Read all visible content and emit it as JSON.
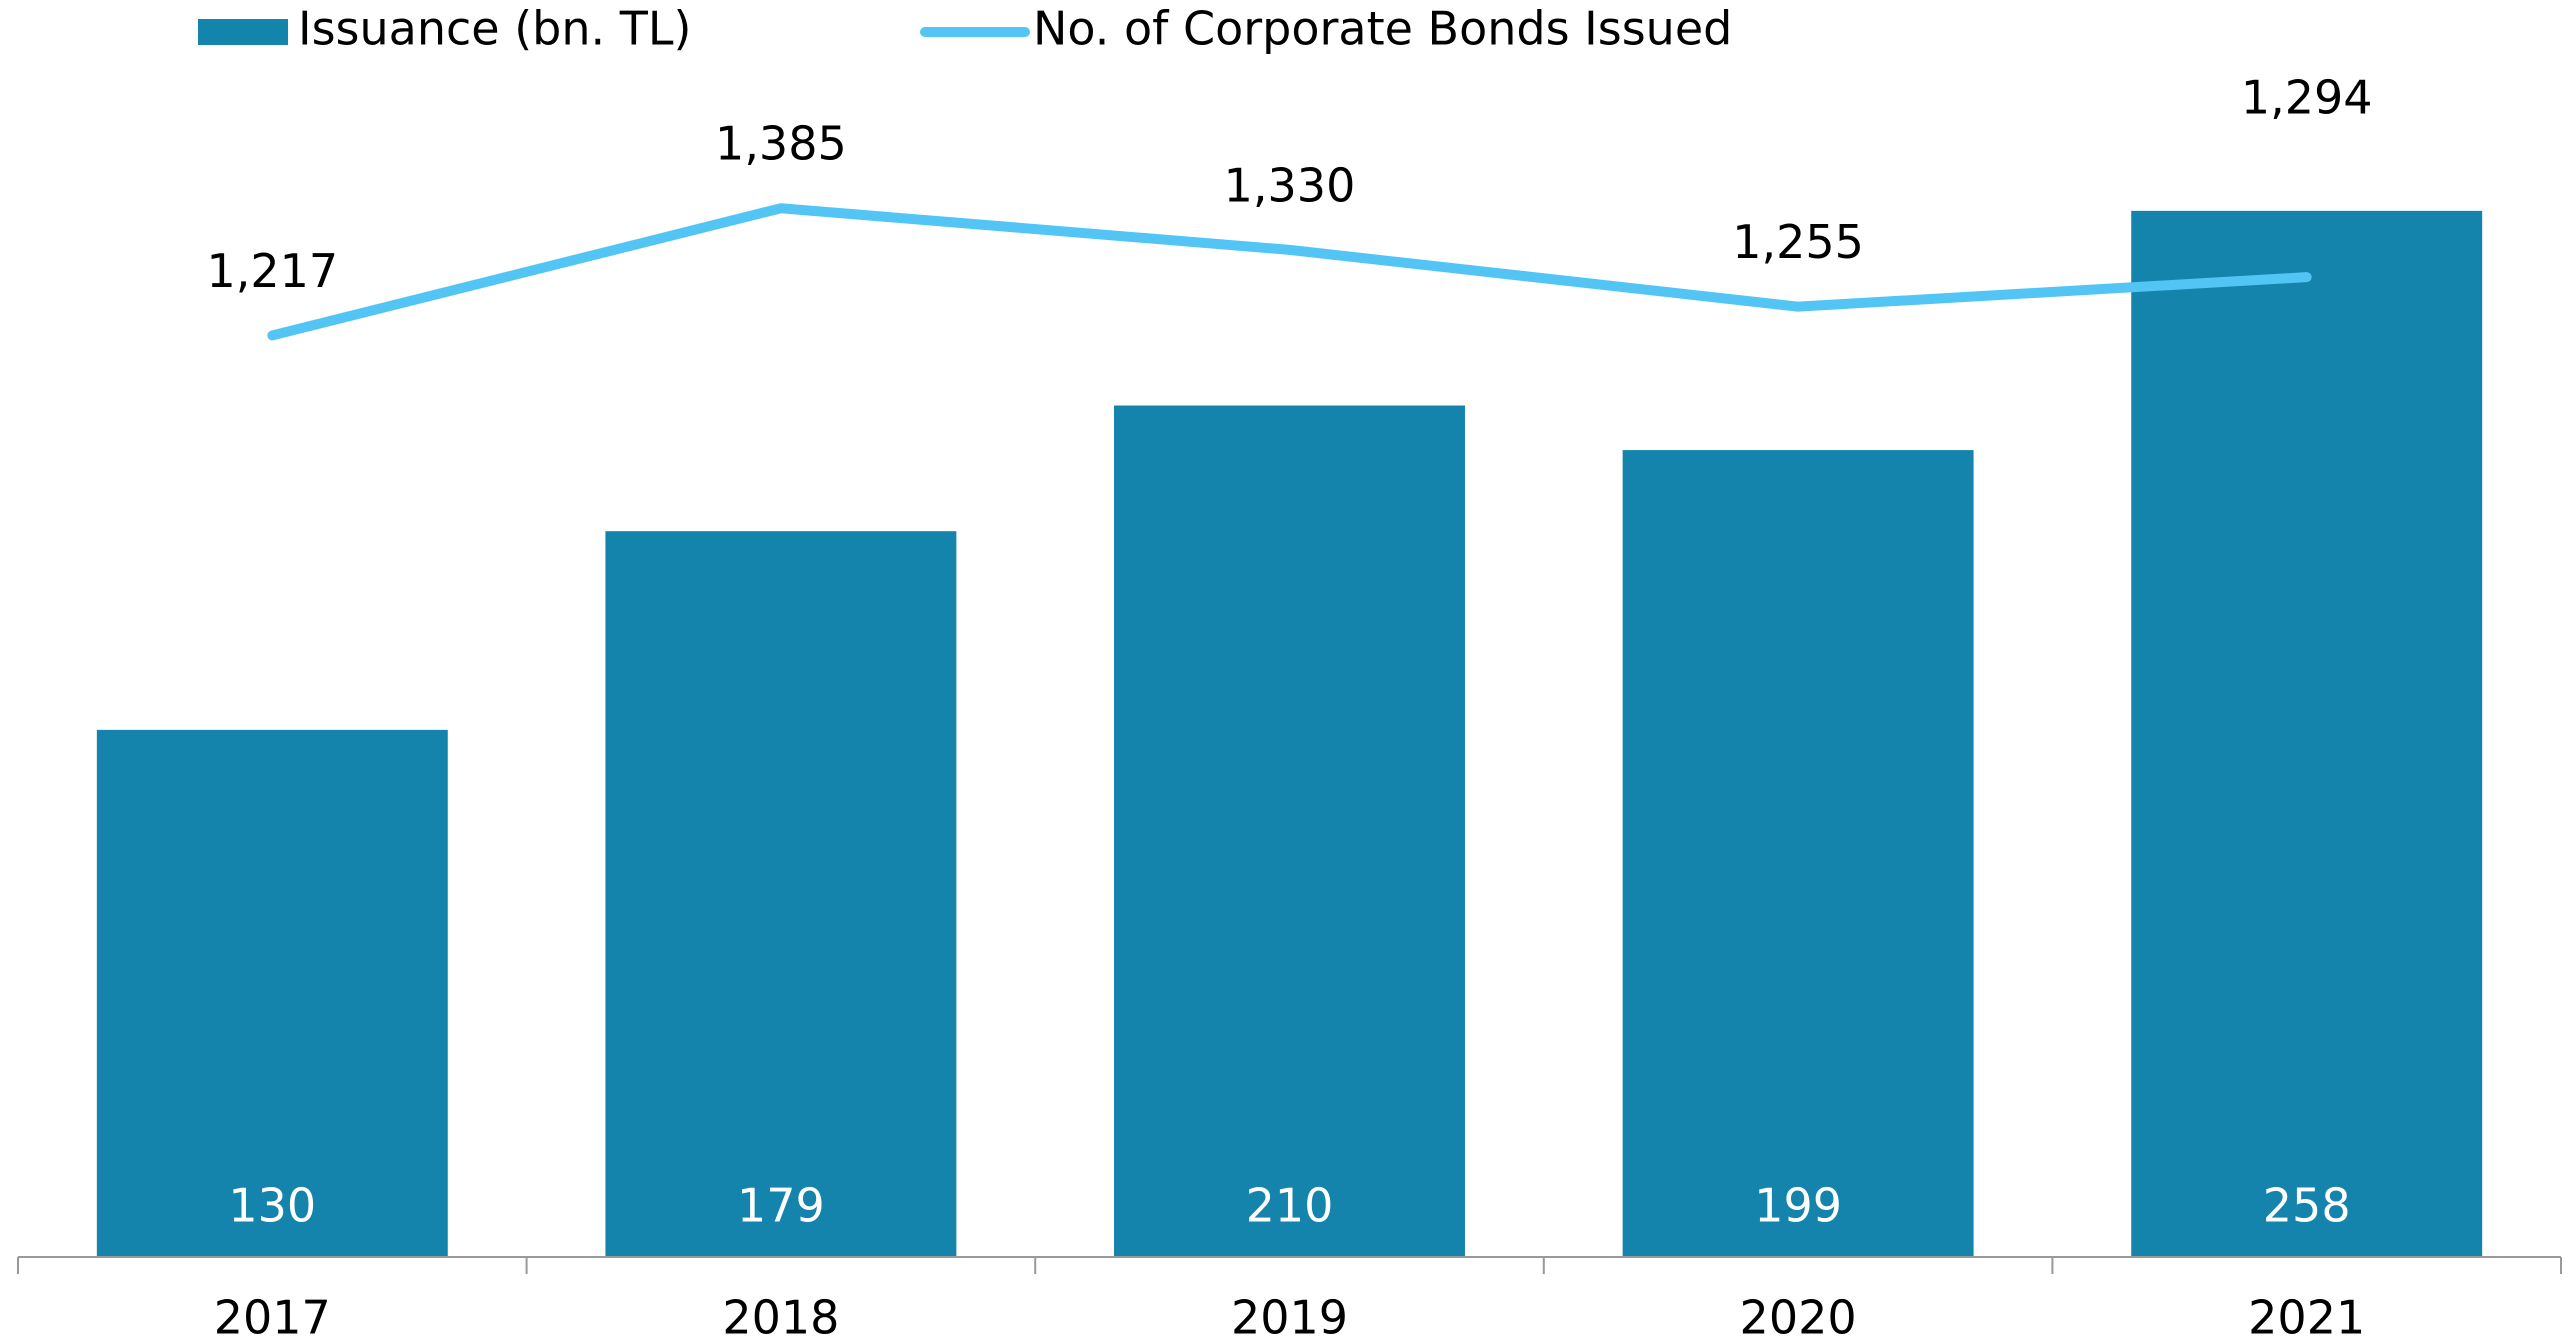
{
  "chart_data": {
    "type": "bar-line",
    "categories": [
      "2017",
      "2018",
      "2019",
      "2020",
      "2021"
    ],
    "series": [
      {
        "name": "Issuance (bn. TL)",
        "type": "bar",
        "color": "#1484ad",
        "values": [
          130,
          179,
          210,
          199,
          258
        ]
      },
      {
        "name": "No. of Corporate Bonds Issued",
        "type": "line",
        "axis": "y2",
        "color": "#52c5f5",
        "values": [
          1217,
          1385,
          1330,
          1255,
          1294
        ],
        "value_labels": [
          "1,217",
          "1,385",
          "1,330",
          "1,255",
          "1,294"
        ]
      }
    ],
    "ylim": [
      0,
      310
    ],
    "y2lim": [
      0,
      1660
    ],
    "legend": "top"
  }
}
